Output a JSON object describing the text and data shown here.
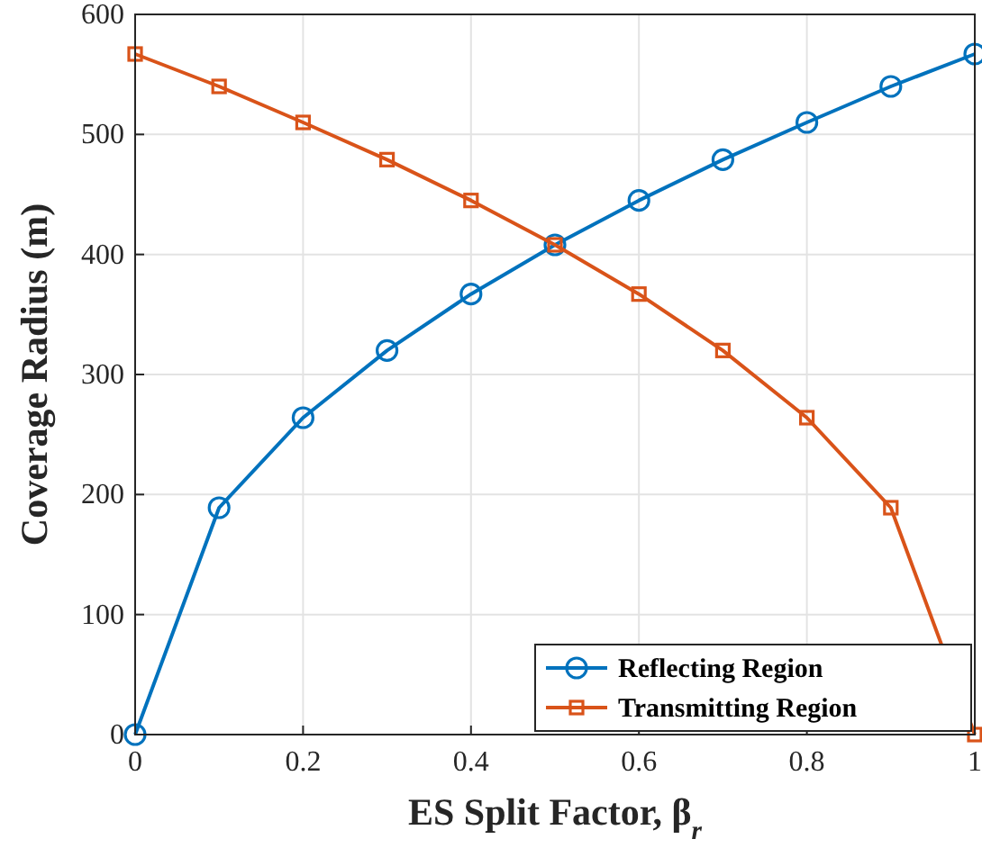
{
  "chart_data": {
    "type": "line",
    "xlabel": "ES Split Factor, β$_{r}$",
    "ylabel": "Coverage Radius (m)",
    "x": [
      0,
      0.1,
      0.2,
      0.3,
      0.4,
      0.5,
      0.6,
      0.7,
      0.8,
      0.9,
      1
    ],
    "series": [
      {
        "name": "Reflecting Region",
        "color": "#0072bd",
        "marker": "circle",
        "values": [
          0,
          189,
          264,
          320,
          367,
          408,
          445,
          479,
          510,
          540,
          567
        ]
      },
      {
        "name": "Transmitting Region",
        "color": "#d95319",
        "marker": "square",
        "values": [
          567,
          540,
          510,
          479,
          445,
          408,
          367,
          320,
          264,
          189,
          0
        ]
      }
    ],
    "xlim": [
      0,
      1
    ],
    "xticks": [
      0,
      0.2,
      0.4,
      0.6,
      0.8,
      1
    ],
    "ylim": [
      0,
      600
    ],
    "yticks": [
      0,
      100,
      200,
      300,
      400,
      500,
      600
    ],
    "grid": true,
    "legend": "bottom right",
    "line_style": "solid"
  }
}
